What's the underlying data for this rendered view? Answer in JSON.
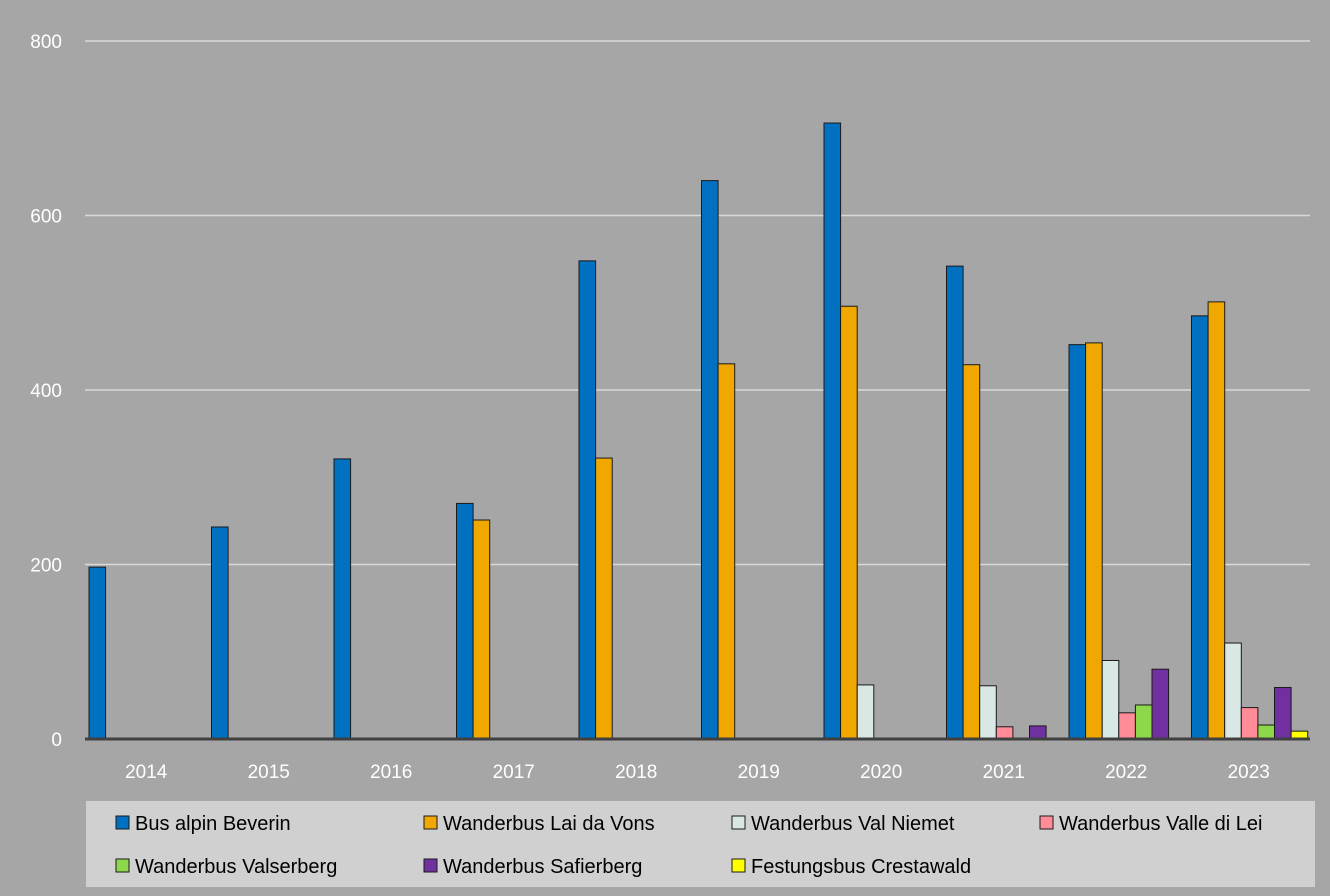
{
  "chart_data": {
    "type": "bar",
    "title": "",
    "xlabel": "",
    "ylabel": "",
    "ylim": [
      0,
      800
    ],
    "yticks": [
      0,
      200,
      400,
      600,
      800
    ],
    "grid": true,
    "legend_position": "bottom",
    "categories": [
      "2014",
      "2015",
      "2016",
      "2017",
      "2018",
      "2019",
      "2020",
      "2021",
      "2022",
      "2023"
    ],
    "series": [
      {
        "name": "Bus alpin Beverin",
        "color": "#0070c0",
        "values": [
          197,
          243,
          321,
          270,
          548,
          640,
          706,
          542,
          452,
          485
        ]
      },
      {
        "name": "Wanderbus Lai da Vons",
        "color": "#f0a800",
        "values": [
          0,
          0,
          0,
          251,
          322,
          430,
          496,
          429,
          454,
          501
        ]
      },
      {
        "name": "Wanderbus Val Niemet",
        "color": "#d9e8e4",
        "values": [
          0,
          0,
          0,
          0,
          0,
          0,
          62,
          61,
          90,
          110
        ]
      },
      {
        "name": "Wanderbus Valle di Lei",
        "color": "#ff8c96",
        "values": [
          0,
          0,
          0,
          0,
          0,
          0,
          0,
          14,
          30,
          36
        ]
      },
      {
        "name": "Wanderbus Valserberg",
        "color": "#8cd84a",
        "values": [
          0,
          0,
          0,
          0,
          0,
          0,
          0,
          0,
          39,
          16
        ]
      },
      {
        "name": "Wanderbus Safierberg",
        "color": "#7030a0",
        "values": [
          0,
          0,
          0,
          0,
          0,
          0,
          0,
          15,
          80,
          59
        ]
      },
      {
        "name": "Festungsbus Crestawald",
        "color": "#ffff00",
        "values": [
          0,
          0,
          0,
          0,
          0,
          0,
          0,
          0,
          0,
          9
        ]
      }
    ]
  }
}
